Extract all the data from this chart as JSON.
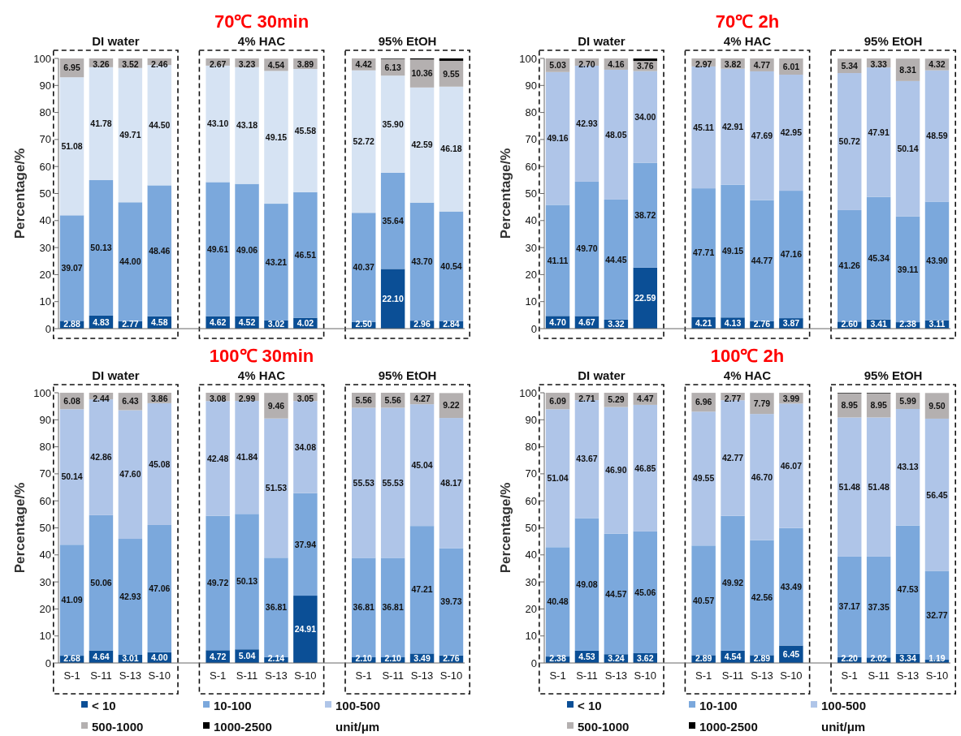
{
  "chart_data": [
    {
      "type": "bar",
      "stacked": true,
      "title": "70℃ 30min",
      "ylabel": "Percentage/%",
      "annotations": [
        "DI water",
        "4% HAC",
        "95% EtOH"
      ],
      "tick_labels": "y",
      "categories": [
        null,
        null,
        null,
        null,
        null,
        null,
        null,
        null,
        null,
        null,
        null,
        null,
        null,
        null
      ],
      "ylim": [
        0,
        100
      ],
      "yticks": [
        0,
        10,
        20,
        30,
        40,
        50,
        60,
        70,
        80,
        90,
        100
      ],
      "series": [
        {
          "color": "#0b4f96",
          "values": [
            2.88,
            4.83,
            2.77,
            4.58,
            null,
            4.62,
            4.52,
            3.02,
            4.02,
            null,
            2.5,
            22.1,
            2.96,
            2.84
          ],
          "value_labels": [
            "2.88",
            "4.83",
            "2.77",
            "4.58",
            null,
            "4.62",
            "4.52",
            "3.02",
            "4.02",
            null,
            "2.50",
            "22.10",
            "2.96",
            "2.84"
          ]
        },
        {
          "color": "#7ba8dc",
          "values": [
            39.07,
            50.13,
            44.0,
            48.46,
            null,
            49.61,
            49.06,
            43.21,
            46.51,
            null,
            40.37,
            35.64,
            43.7,
            40.54
          ],
          "value_labels": [
            "39.07",
            "50.13",
            "44.00",
            "48.46",
            null,
            "49.61",
            "49.06",
            "43.21",
            "46.51",
            null,
            "40.37",
            "35.64",
            "43.70",
            "40.54"
          ]
        },
        {
          "color": "#d6e3f3",
          "values": [
            51.08,
            41.78,
            49.71,
            44.5,
            null,
            43.1,
            43.18,
            49.15,
            45.58,
            null,
            52.72,
            35.9,
            42.59,
            46.18
          ],
          "value_labels": [
            "51.08",
            "41.78",
            "49.71",
            "44.50",
            null,
            "43.10",
            "43.18",
            "49.15",
            "45.58",
            null,
            "52.72",
            "35.90",
            "42.59",
            "46.18"
          ]
        },
        {
          "color": "#b4b0b0",
          "values": [
            6.95,
            3.26,
            3.52,
            2.46,
            null,
            2.67,
            3.23,
            4.54,
            3.89,
            null,
            4.42,
            6.13,
            10.36,
            9.55
          ],
          "value_labels": [
            "6.95",
            "3.26",
            "3.52",
            "2.46",
            null,
            "2.67",
            "3.23",
            "4.54",
            "3.89",
            null,
            "4.42",
            "6.13",
            "10.36",
            "9.55"
          ]
        },
        {
          "color": "#000000",
          "values": [
            0,
            0,
            0,
            0,
            null,
            0,
            0,
            0,
            0,
            null,
            0,
            0.2,
            0.4,
            0.9
          ]
        }
      ]
    },
    {
      "type": "bar",
      "stacked": true,
      "title": "70℃ 2h",
      "ylabel": "Percentage/%",
      "annotations": [
        "DI water",
        "4% HAC",
        "95% EtOH"
      ],
      "tick_labels": "y",
      "categories": [
        null,
        null,
        null,
        null,
        null,
        null,
        null,
        null,
        null,
        null,
        null,
        null,
        null,
        null
      ],
      "ylim": [
        0,
        100
      ],
      "yticks": [
        0,
        10,
        20,
        30,
        40,
        50,
        60,
        70,
        80,
        90,
        100
      ],
      "series": [
        {
          "color": "#0b4f96",
          "values": [
            4.7,
            4.67,
            3.32,
            22.59,
            null,
            4.21,
            4.13,
            2.76,
            3.87,
            null,
            2.6,
            3.41,
            2.38,
            3.11
          ],
          "value_labels": [
            "4.70",
            "4.67",
            "3.32",
            "22.59",
            null,
            "4.21",
            "4.13",
            "2.76",
            "3.87",
            null,
            "2.60",
            "3.41",
            "2.38",
            "3.11"
          ]
        },
        {
          "color": "#7ba8dc",
          "values": [
            41.11,
            49.7,
            44.45,
            38.72,
            null,
            47.71,
            49.15,
            44.77,
            47.16,
            null,
            41.26,
            45.34,
            39.11,
            43.9
          ],
          "value_labels": [
            "41.11",
            "49.70",
            "44.45",
            "38.72",
            null,
            "47.71",
            "49.15",
            "44.77",
            "47.16",
            null,
            "41.26",
            "45.34",
            "39.11",
            "43.90"
          ]
        },
        {
          "color": "#afc5e8",
          "values": [
            49.16,
            42.93,
            48.05,
            34.0,
            null,
            45.11,
            42.91,
            47.69,
            42.95,
            null,
            50.72,
            47.91,
            50.14,
            48.59
          ],
          "value_labels": [
            "49.16",
            "42.93",
            "48.05",
            "34.00",
            null,
            "45.11",
            "42.91",
            "47.69",
            "42.95",
            null,
            "50.72",
            "47.91",
            "50.14",
            "48.59"
          ]
        },
        {
          "color": "#b4b0b0",
          "values": [
            5.03,
            2.7,
            4.16,
            3.76,
            null,
            2.97,
            3.82,
            4.77,
            6.01,
            null,
            5.34,
            3.33,
            8.31,
            4.32
          ],
          "value_labels": [
            "5.03",
            "2.70",
            "4.16",
            "3.76",
            null,
            "2.97",
            "3.82",
            "4.77",
            "6.01",
            null,
            "5.34",
            "3.33",
            "8.31",
            "4.32"
          ]
        },
        {
          "color": "#000000",
          "values": [
            0,
            0,
            0,
            0.9,
            null,
            0,
            0,
            0,
            0,
            null,
            0,
            0,
            0,
            0
          ]
        }
      ]
    },
    {
      "type": "bar",
      "stacked": true,
      "title": "100℃ 30min",
      "ylabel": "Percentage/%",
      "annotations": [
        "DI water",
        "4% HAC",
        "95% EtOH"
      ],
      "legend": "bottom",
      "legend_title": "unit/μm",
      "categories": [
        "S-1",
        "S-11",
        "S-13",
        "S-10",
        null,
        "S-1",
        "S-11",
        "S-13",
        "S-10",
        null,
        "S-1",
        "S-11",
        "S-13",
        "S-10"
      ],
      "ylim": [
        0,
        100
      ],
      "yticks": [
        0,
        10,
        20,
        30,
        40,
        50,
        60,
        70,
        80,
        90,
        100
      ],
      "series": [
        {
          "name": "< 10",
          "color": "#0b4f96",
          "values": [
            2.68,
            4.64,
            3.01,
            4.0,
            null,
            4.72,
            5.04,
            2.14,
            24.91,
            null,
            2.1,
            2.1,
            3.49,
            2.76
          ],
          "value_labels": [
            "2.68",
            "4.64",
            "3.01",
            "4.00",
            null,
            "4.72",
            "5.04",
            "2.14",
            "24.91",
            null,
            "2.10",
            "2.10",
            "3.49",
            "2.76"
          ]
        },
        {
          "name": "10-100",
          "color": "#7ba8dc",
          "values": [
            41.09,
            50.06,
            42.93,
            47.06,
            null,
            49.72,
            50.13,
            36.81,
            37.94,
            null,
            36.81,
            36.81,
            47.21,
            39.73
          ],
          "value_labels": [
            "41.09",
            "50.06",
            "42.93",
            "47.06",
            null,
            "49.72",
            "50.13",
            "36.81",
            "37.94",
            null,
            "36.81",
            "36.81",
            "47.21",
            "39.73"
          ]
        },
        {
          "name": "100-500",
          "color": "#afc5e8",
          "values": [
            50.14,
            42.86,
            47.6,
            45.08,
            null,
            42.48,
            41.84,
            51.53,
            34.08,
            null,
            55.53,
            55.53,
            45.04,
            48.17
          ],
          "value_labels": [
            "50.14",
            "42.86",
            "47.60",
            "45.08",
            null,
            "42.48",
            "41.84",
            "51.53",
            "34.08",
            null,
            "55.53",
            "55.53",
            "45.04",
            "48.17"
          ]
        },
        {
          "name": "500-1000",
          "color": "#b4b0b0",
          "values": [
            6.08,
            2.44,
            6.43,
            3.86,
            null,
            3.08,
            2.99,
            9.46,
            3.05,
            null,
            5.56,
            5.56,
            4.27,
            9.22
          ],
          "value_labels": [
            "6.08",
            "2.44",
            "6.43",
            "3.86",
            null,
            "3.08",
            "2.99",
            "9.46",
            "3.05",
            null,
            "5.56",
            "5.56",
            "4.27",
            "9.22"
          ]
        },
        {
          "name": "1000-2500",
          "color": "#000000",
          "values": [
            0,
            0,
            0,
            0,
            null,
            0,
            0,
            0,
            0,
            null,
            0,
            0,
            0,
            0
          ]
        }
      ]
    },
    {
      "type": "bar",
      "stacked": true,
      "title": "100℃ 2h",
      "ylabel": "Percentage/%",
      "annotations": [
        "DI water",
        "4% HAC",
        "95% EtOH"
      ],
      "legend": "bottom",
      "legend_title": "unit/μm",
      "categories": [
        "S-1",
        "S-11",
        "S-13",
        "S-10",
        null,
        "S-1",
        "S-11",
        "S-13",
        "S-10",
        null,
        "S-1",
        "S-11",
        "S-13",
        "S-10"
      ],
      "ylim": [
        0,
        100
      ],
      "yticks": [
        0,
        10,
        20,
        30,
        40,
        50,
        60,
        70,
        80,
        90,
        100
      ],
      "series": [
        {
          "name": "< 10",
          "color": "#0b4f96",
          "values": [
            2.38,
            4.53,
            3.24,
            3.62,
            null,
            2.89,
            4.54,
            2.89,
            6.45,
            null,
            2.2,
            2.02,
            3.34,
            1.19
          ],
          "value_labels": [
            "2.38",
            "4.53",
            "3.24",
            "3.62",
            null,
            "2.89",
            "4.54",
            "2.89",
            "6.45",
            null,
            "2.20",
            "2.02",
            "3.34",
            "1.19"
          ]
        },
        {
          "name": "10-100",
          "color": "#7ba8dc",
          "values": [
            40.48,
            49.08,
            44.57,
            45.06,
            null,
            40.57,
            49.92,
            42.56,
            43.49,
            null,
            37.17,
            37.35,
            47.53,
            32.77
          ],
          "value_labels": [
            "40.48",
            "49.08",
            "44.57",
            "45.06",
            null,
            "40.57",
            "49.92",
            "42.56",
            "43.49",
            null,
            "37.17",
            "37.35",
            "47.53",
            "32.77"
          ]
        },
        {
          "name": "100-500",
          "color": "#afc5e8",
          "values": [
            51.04,
            43.67,
            46.9,
            46.85,
            null,
            49.55,
            42.77,
            46.7,
            46.07,
            null,
            51.48,
            51.48,
            43.13,
            56.45
          ],
          "value_labels": [
            "51.04",
            "43.67",
            "46.90",
            "46.85",
            null,
            "49.55",
            "42.77",
            "46.70",
            "46.07",
            null,
            "51.48",
            "51.48",
            "43.13",
            "56.45"
          ]
        },
        {
          "name": "500-1000",
          "color": "#b4b0b0",
          "values": [
            6.09,
            2.71,
            5.29,
            4.47,
            null,
            6.96,
            2.77,
            7.79,
            3.99,
            null,
            8.95,
            8.95,
            5.99,
            9.5
          ],
          "value_labels": [
            "6.09",
            "2.71",
            "5.29",
            "4.47",
            null,
            "6.96",
            "2.77",
            "7.79",
            "3.99",
            null,
            "8.95",
            "8.95",
            "5.99",
            "9.50"
          ]
        },
        {
          "name": "1000-2500",
          "color": "#000000",
          "values": [
            0,
            0,
            0,
            0,
            null,
            0,
            0,
            0,
            0,
            null,
            0.2,
            0.2,
            0,
            0
          ]
        }
      ]
    }
  ]
}
